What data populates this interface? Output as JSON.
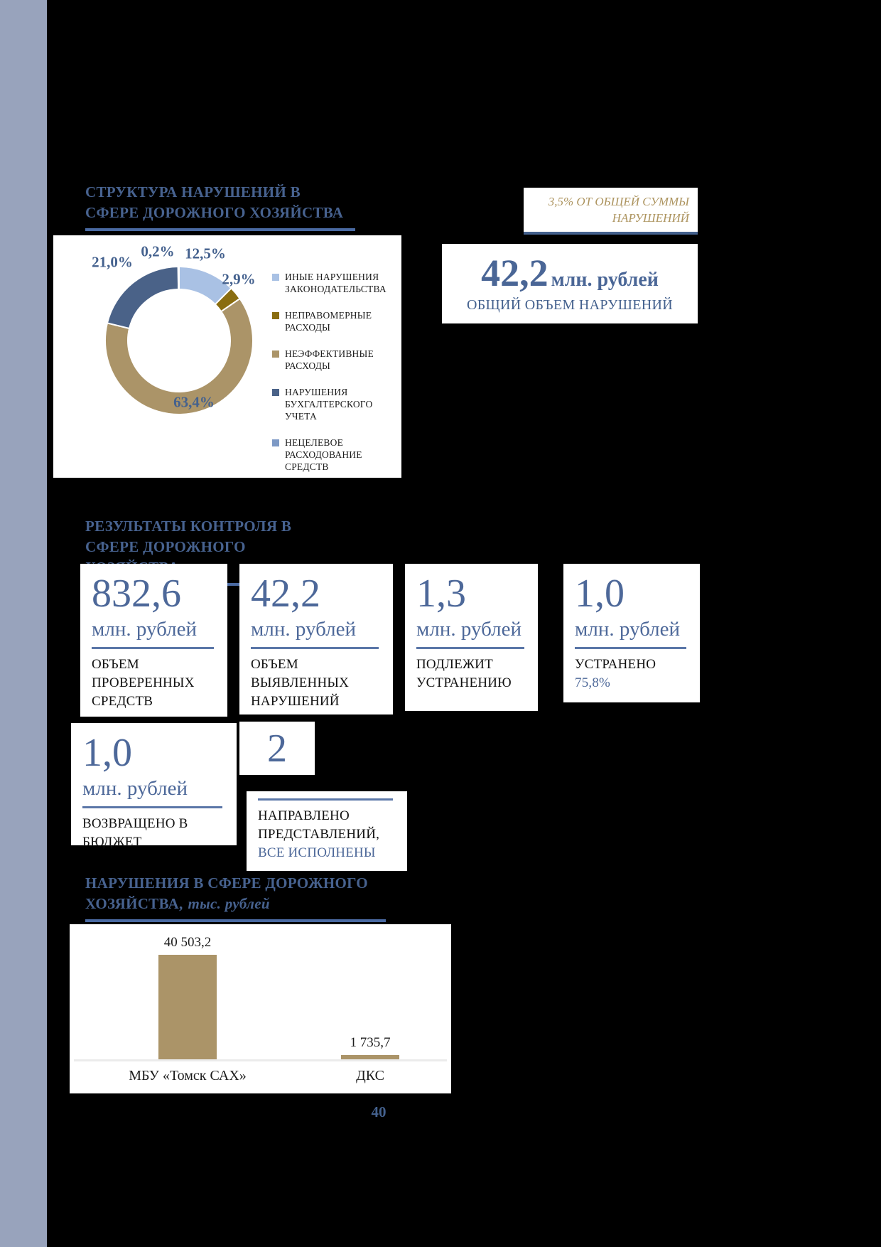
{
  "page_number": "40",
  "colors": {
    "sidebar": "#98a3bc",
    "background": "#000000",
    "heading_blue": "#47628f",
    "underline_blue": "#4a6aa2",
    "number_blue": "#4d6899",
    "note_gold": "#ad945f",
    "label_black": "#111111",
    "tan": "#ab9468",
    "dark_gold": "#8a6d10",
    "light_blue": "#a9c1e4",
    "slate_blue": "#4a6288",
    "medium_blue": "#7d99c5"
  },
  "section_structure": {
    "title": "СТРУКТУРА НАРУШЕНИЙ В СФЕРЕ ДОРОЖНОГО ХОЗЯЙСТВА"
  },
  "note_box": {
    "text": "3,5% ОТ ОБЩЕЙ СУММЫ НАРУШЕНИЙ"
  },
  "total_box": {
    "value": "42,2",
    "unit": "млн. рублей",
    "label": "ОБЩИЙ ОБЪЕМ НАРУШЕНИЙ"
  },
  "section_results": {
    "title": "РЕЗУЛЬТАТЫ КОНТРОЛЯ В СФЕРЕ ДОРОЖНОГО ХОЗЯЙСТВА"
  },
  "stats": [
    {
      "value": "832,6",
      "unit": "млн. рублей",
      "label": "ОБЪЕМ ПРОВЕРЕННЫХ СРЕДСТВ",
      "sublabel": ""
    },
    {
      "value": "42,2",
      "unit": "млн. рублей",
      "label": "ОБЪЕМ ВЫЯВЛЕННЫХ НАРУШЕНИЙ",
      "sublabel": ""
    },
    {
      "value": "1,3",
      "unit": "млн. рублей",
      "label": "ПОДЛЕЖИТ УСТРАНЕНИЮ",
      "sublabel": ""
    },
    {
      "value": "1,0",
      "unit": "млн. рублей",
      "label": "УСТРАНЕНО",
      "sublabel": "75,8%"
    },
    {
      "value": "1,0",
      "unit": "млн. рублей",
      "label": "ВОЗВРАЩЕНО В БЮДЖЕТ",
      "sublabel": ""
    },
    {
      "value": "2",
      "unit": "",
      "label": "НАПРАВЛЕНО ПРЕДСТАВЛЕНИЙ,",
      "sublabel": "ВСЕ ИСПОЛНЕНЫ"
    }
  ],
  "section_bar": {
    "title_line1": "НАРУШЕНИЯ В СФЕРЕ ДОРОЖНОГО",
    "title_line2_bold": "ХОЗЯЙСТВА,",
    "title_line2_italic": "тыс. рублей"
  },
  "chart_data": [
    {
      "type": "pie",
      "donut": true,
      "title": "СТРУКТУРА НАРУШЕНИЙ В СФЕРЕ ДОРОЖНОГО ХОЗЯЙСТВА",
      "legend_position": "right",
      "start_angle_deg": 0,
      "direction": "clockwise",
      "segments": [
        {
          "label": "ИНЫЕ НАРУШЕНИЯ ЗАКОНОДАТЕЛЬСТВА",
          "value": 12.5,
          "value_label": "12,5%",
          "color": "#a9c1e4"
        },
        {
          "label": "НЕПРАВОМЕРНЫЕ РАСХОДЫ",
          "value": 2.9,
          "value_label": "2,9%",
          "color": "#8a6d10"
        },
        {
          "label": "НЕЭФФЕКТИВНЫЕ РАСХОДЫ",
          "value": 63.4,
          "value_label": "63,4%",
          "color": "#ab9468"
        },
        {
          "label": "НАРУШЕНИЯ БУХГАЛТЕРСКОГО УЧЕТА",
          "value": 21.0,
          "value_label": "21,0%",
          "color": "#4a6288"
        },
        {
          "label": "НЕЦЕЛЕВОЕ РАСХОДОВАНИЕ СРЕДСТВ",
          "value": 0.2,
          "value_label": "0,2%",
          "color": "#7d99c5"
        }
      ]
    },
    {
      "type": "bar",
      "title": "НАРУШЕНИЯ В СФЕРЕ ДОРОЖНОГО ХОЗЯЙСТВА, тыс. рублей",
      "categories": [
        "МБУ «Томск САХ»",
        "ДКС"
      ],
      "values": [
        40503.2,
        1735.7
      ],
      "value_labels": [
        "40 503,2",
        "1 735,7"
      ],
      "bar_color": "#ab9468",
      "ylim": [
        0,
        45000
      ],
      "grid": false,
      "legend": false
    }
  ]
}
